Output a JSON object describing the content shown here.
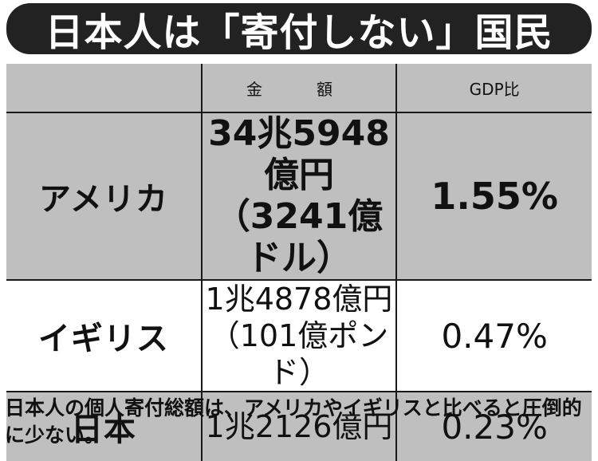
{
  "title": "日本人は「寄付しない」国民",
  "table": {
    "headers": [
      "",
      "金　額",
      "GDP比"
    ],
    "rows": [
      {
        "country": "アメリカ",
        "amount_line1": "34兆5948億円",
        "amount_line2": "（3241億ドル）",
        "gdp_ratio": "1.55%"
      },
      {
        "country": "イギリス",
        "amount_line1": "1兆4878億円",
        "amount_line2": "（101億ポンド）",
        "gdp_ratio": "0.47%"
      },
      {
        "country": "日本",
        "amount_line1": "1兆2126億円",
        "amount_line2": "",
        "gdp_ratio": "0.23%"
      }
    ]
  },
  "caption": "日本人の個人寄付総額は、アメリカやイギリスと比べると圧倒的に少ない。",
  "colors": {
    "title_bg": "#222222",
    "shade": "#bfbfbf",
    "border": "#1a1a1a"
  }
}
